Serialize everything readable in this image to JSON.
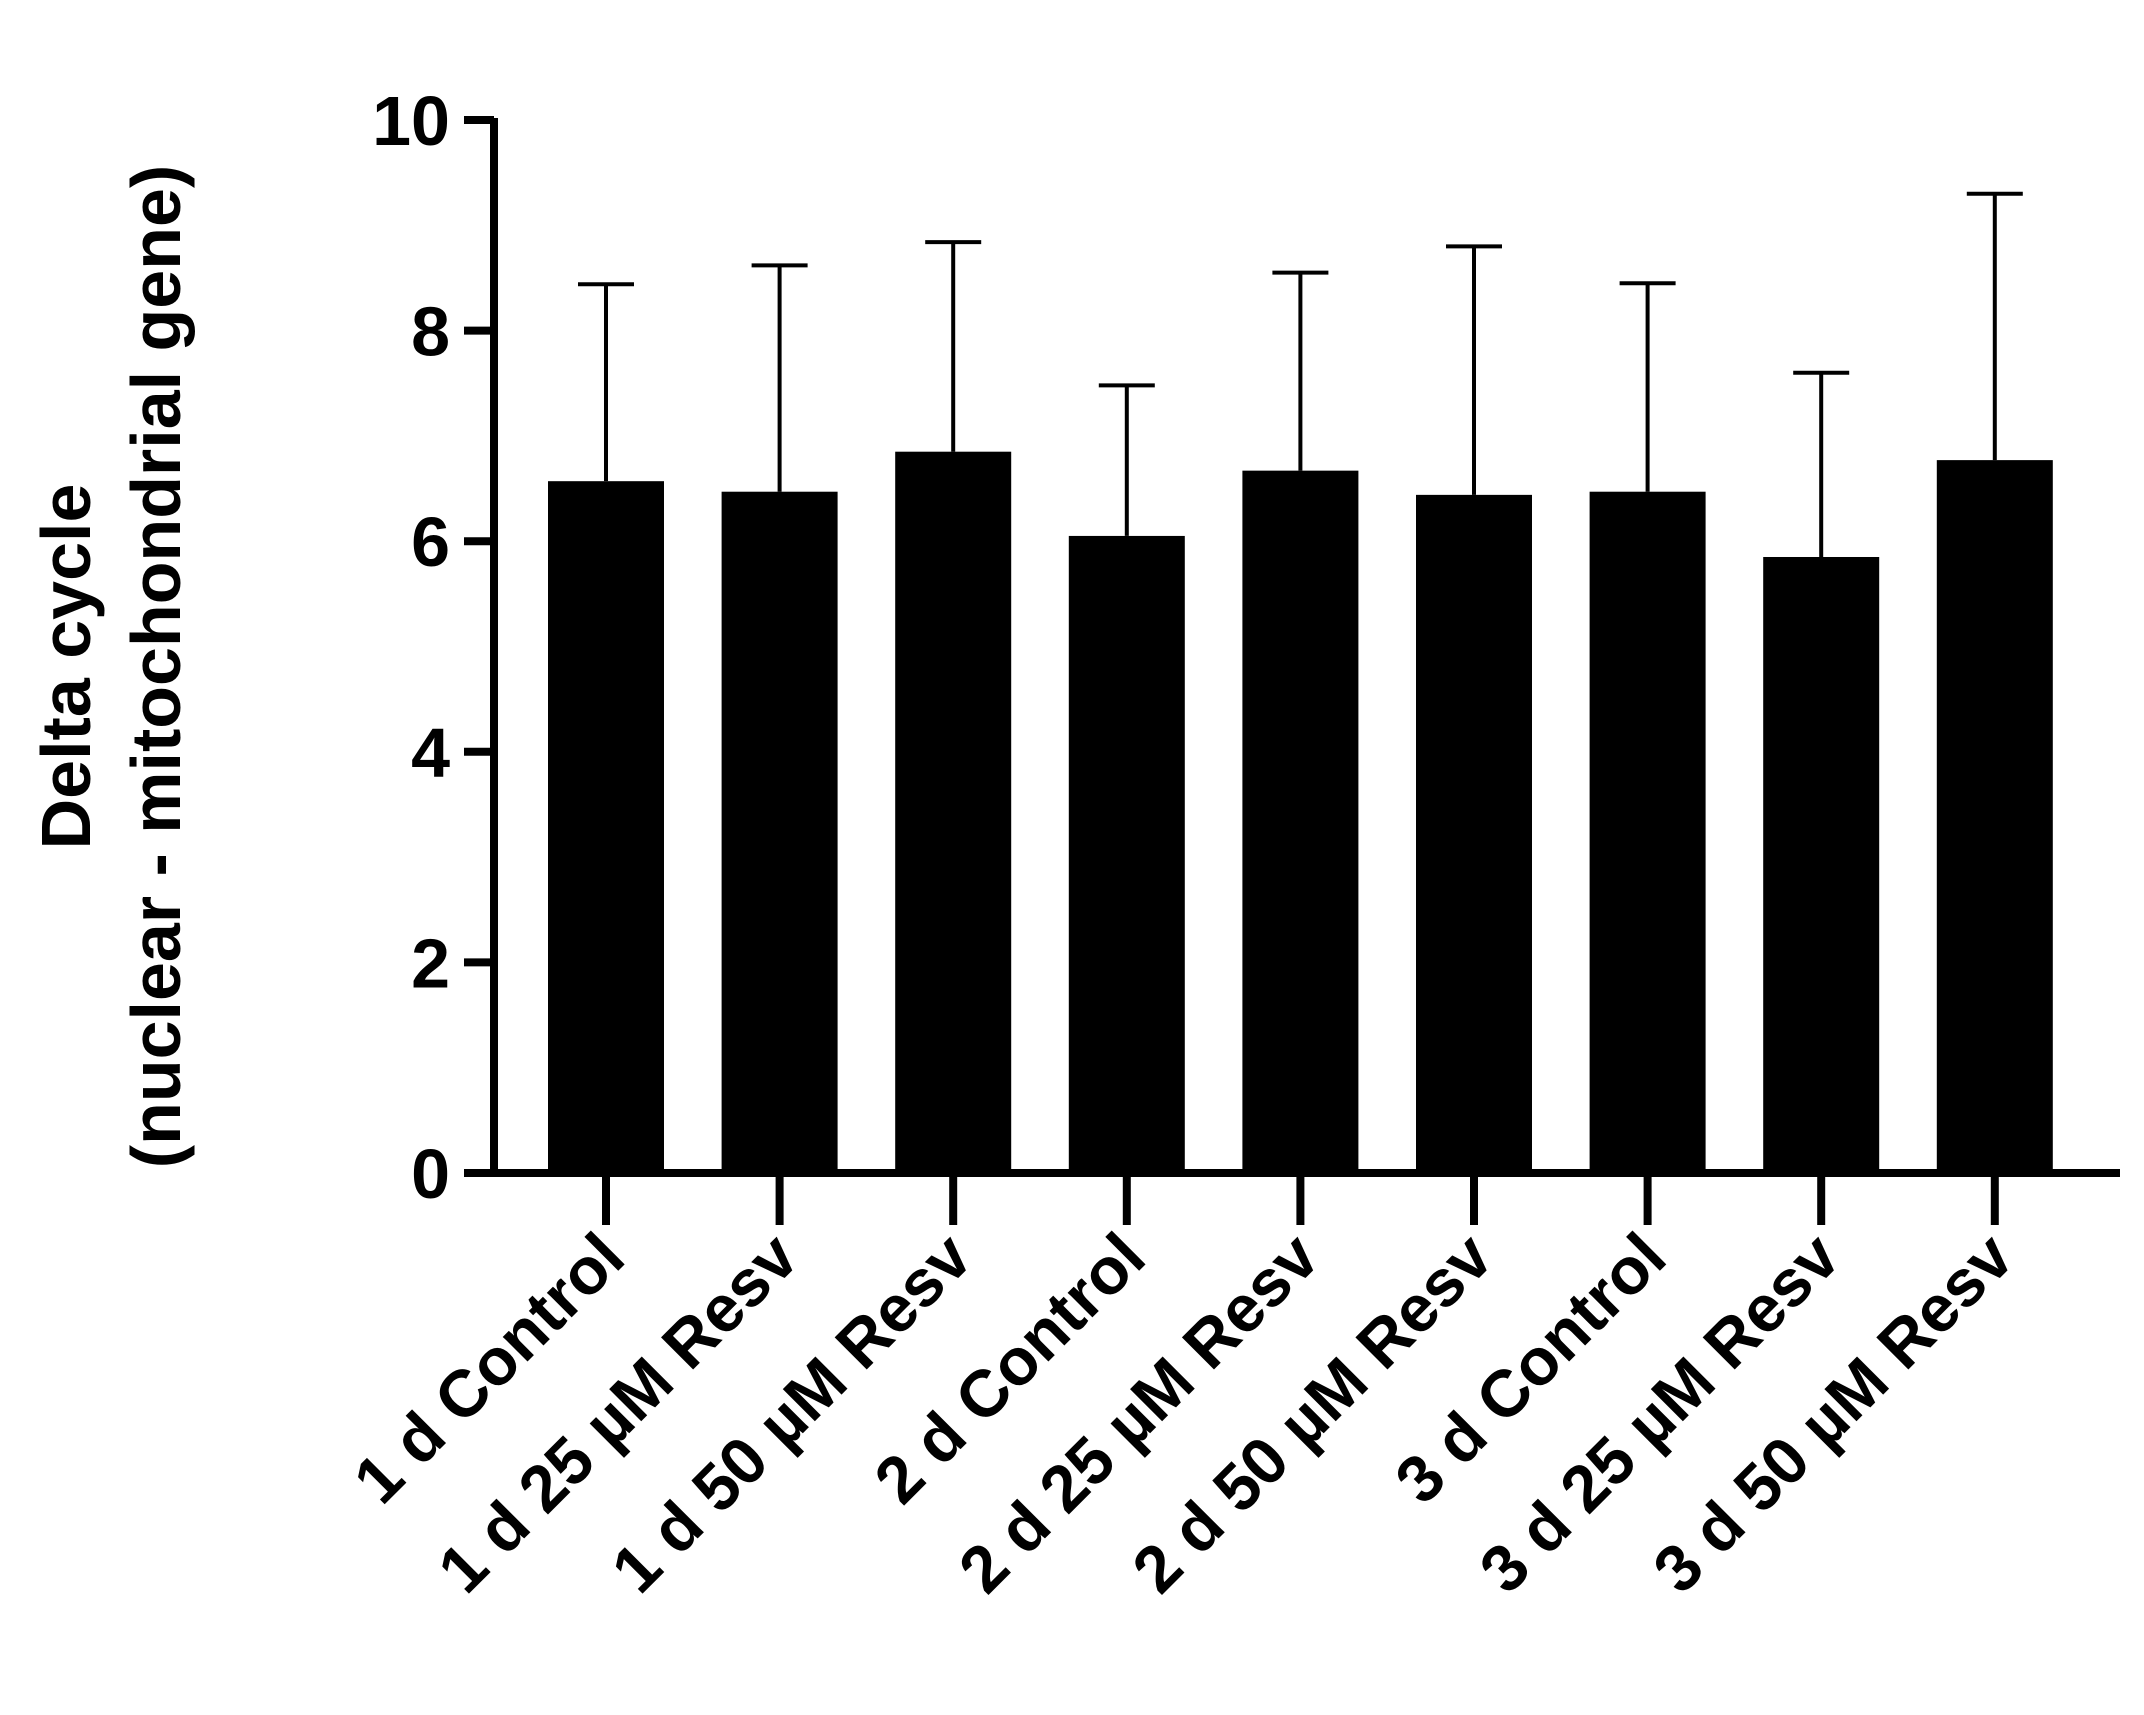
{
  "chart_data": {
    "type": "bar",
    "title": "",
    "xlabel": "",
    "ylabel_line1": "Delta cycle",
    "ylabel_line2": "(nuclear - mitochondrial gene)",
    "ylim": [
      0,
      10
    ],
    "yticks": [
      0,
      2,
      4,
      6,
      8,
      10
    ],
    "ytick_labels": [
      "0",
      "2",
      "4",
      "6",
      "8",
      "10"
    ],
    "grid": false,
    "legend": "none",
    "categories": [
      "1 d Control",
      "1 d 25 µM Resv",
      "1 d 50 µM Resv",
      "2 d Control",
      "2 d 25 µM Resv",
      "2 d 50 µM Resv",
      "3 d Control",
      "3 d 25 µM Resv",
      "3 d 50 µM Resv"
    ],
    "values": [
      6.57,
      6.47,
      6.85,
      6.05,
      6.67,
      6.44,
      6.47,
      5.85,
      6.77
    ],
    "error_upper": [
      8.44,
      8.62,
      8.84,
      7.48,
      8.55,
      8.8,
      8.45,
      7.6,
      9.3
    ],
    "colors": {
      "bar": "#000000",
      "axis": "#000000",
      "background": "#ffffff"
    }
  }
}
